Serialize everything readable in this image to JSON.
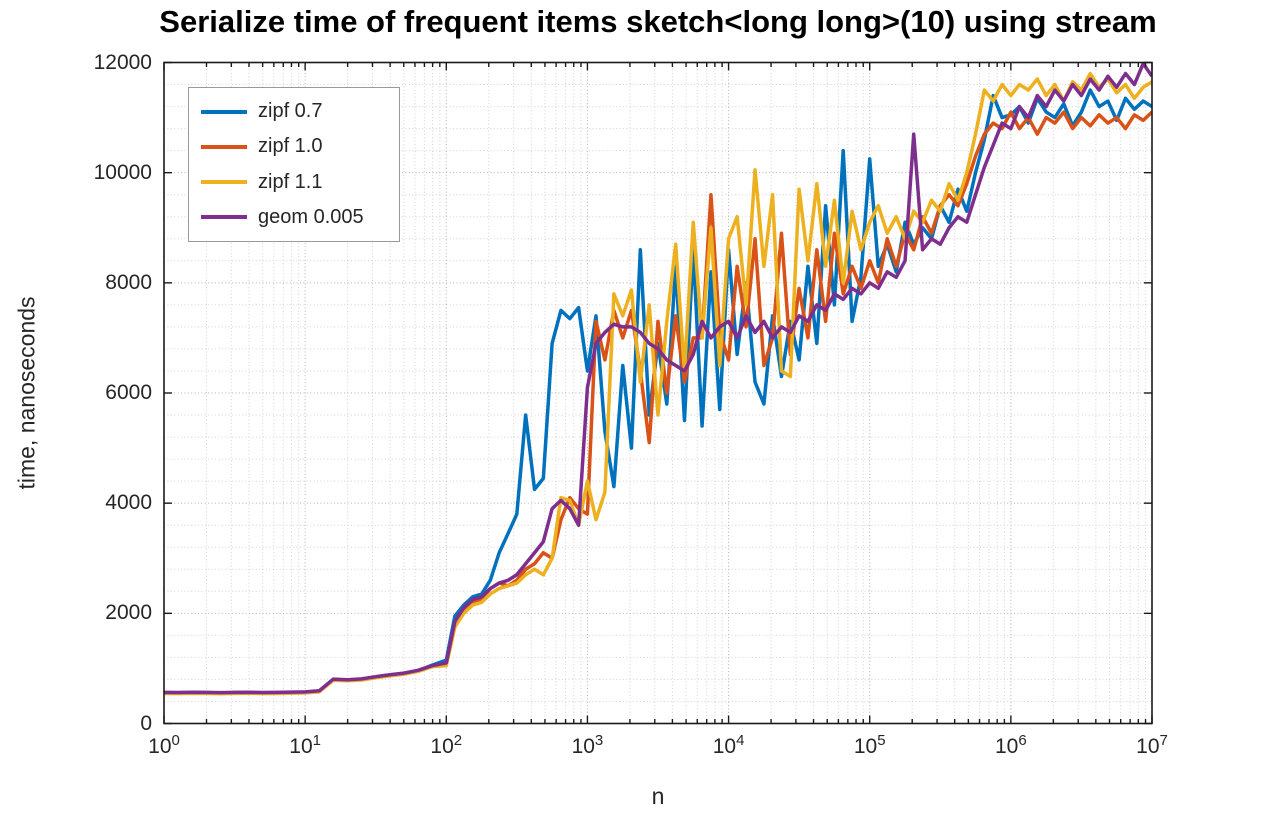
{
  "chart_data": {
    "type": "line",
    "title": "Serialize time of frequent items sketch<long long>(10) using stream",
    "xlabel": "n",
    "ylabel": "time, nanoseconds",
    "x_scale": "log10",
    "xlim": [
      1,
      10000000
    ],
    "ylim": [
      0,
      12000
    ],
    "x_tick_exponents": [
      0,
      1,
      2,
      3,
      4,
      5,
      6,
      7
    ],
    "y_ticks": [
      0,
      2000,
      4000,
      6000,
      8000,
      10000,
      12000
    ],
    "y_minor_step": 400,
    "grid": "major and minor dotted gridlines on",
    "legend_position": "top-left",
    "x": [
      1,
      1.26,
      1.58,
      2,
      2.51,
      3.16,
      3.98,
      5.01,
      6.31,
      7.94,
      10,
      12.6,
      15.8,
      20,
      25.1,
      31.6,
      39.8,
      50.1,
      63.1,
      79.4,
      100,
      115,
      133,
      154,
      178,
      205,
      237,
      274,
      316,
      365,
      422,
      487,
      562,
      649,
      750,
      866,
      1000,
      1150,
      1330,
      1540,
      1780,
      2050,
      2370,
      2740,
      3160,
      3650,
      4220,
      4870,
      5620,
      6490,
      7500,
      8660,
      10000,
      11500,
      13300,
      15400,
      17800,
      20500,
      23700,
      27400,
      31600,
      36500,
      42200,
      48700,
      56200,
      64900,
      75000,
      86600,
      100000,
      115000,
      133000,
      154000,
      178000,
      205000,
      237000,
      274000,
      316000,
      365000,
      422000,
      487000,
      562000,
      649000,
      750000,
      866000,
      1000000,
      1150000,
      1330000,
      1540000,
      1780000,
      2050000,
      2370000,
      2740000,
      3160000,
      3650000,
      4220000,
      4870000,
      5620000,
      6490000,
      7500000,
      8660000,
      10000000
    ],
    "series": [
      {
        "name": "zipf 0.7",
        "color": "#0072BD",
        "values": [
          560,
          558,
          562,
          560,
          556,
          560,
          563,
          558,
          560,
          565,
          570,
          590,
          800,
          790,
          805,
          845,
          880,
          910,
          960,
          1060,
          1150,
          1950,
          2150,
          2300,
          2350,
          2600,
          3100,
          3450,
          3800,
          5600,
          4250,
          4450,
          6900,
          7500,
          7350,
          7550,
          6400,
          7400,
          5300,
          4300,
          6500,
          5000,
          8600,
          5600,
          6900,
          5800,
          8300,
          5500,
          8600,
          5400,
          8200,
          5700,
          8600,
          6700,
          8000,
          6200,
          5800,
          7400,
          6300,
          7300,
          6600,
          8300,
          6900,
          9400,
          7600,
          10400,
          7300,
          8100,
          10250,
          8300,
          8700,
          8200,
          9100,
          8700,
          9000,
          8800,
          9400,
          9100,
          9700,
          9300,
          10000,
          10600,
          11400,
          11000,
          11050,
          11200,
          10900,
          11350,
          11100,
          11000,
          11250,
          10850,
          11100,
          11500,
          11200,
          11300,
          10950,
          11350,
          11150,
          11300,
          11200
        ]
      },
      {
        "name": "zipf 1.0",
        "color": "#D95319",
        "values": [
          552,
          550,
          554,
          552,
          548,
          552,
          555,
          550,
          552,
          557,
          562,
          582,
          792,
          782,
          797,
          837,
          872,
          900,
          950,
          1040,
          1100,
          1800,
          2050,
          2200,
          2250,
          2450,
          2550,
          2500,
          2600,
          2800,
          2900,
          3100,
          3000,
          3700,
          4100,
          3900,
          3800,
          7300,
          6600,
          7500,
          7000,
          7500,
          6400,
          5100,
          7300,
          6000,
          7400,
          6200,
          7000,
          7000,
          9600,
          7100,
          6600,
          8300,
          7200,
          8800,
          6500,
          7000,
          8900,
          6700,
          7900,
          7000,
          8600,
          7300,
          8900,
          7800,
          8300,
          7900,
          8400,
          8000,
          8800,
          8300,
          8900,
          8600,
          9200,
          8900,
          9400,
          9600,
          9400,
          9800,
          10300,
          10700,
          10900,
          10800,
          11100,
          10800,
          11000,
          10700,
          11000,
          10900,
          11100,
          10800,
          11000,
          10850,
          11050,
          10900,
          11000,
          10800,
          11050,
          10950,
          11100
        ]
      },
      {
        "name": "zipf 1.1",
        "color": "#EDB120",
        "values": [
          545,
          543,
          547,
          545,
          541,
          545,
          548,
          543,
          545,
          550,
          555,
          575,
          785,
          775,
          790,
          830,
          865,
          895,
          945,
          1030,
          1050,
          1750,
          2000,
          2150,
          2200,
          2350,
          2450,
          2500,
          2550,
          2700,
          2800,
          2700,
          3000,
          4100,
          4050,
          3600,
          4400,
          3700,
          4200,
          7800,
          7400,
          7870,
          6200,
          7600,
          5600,
          7300,
          8700,
          6400,
          9100,
          7000,
          9000,
          6500,
          8800,
          9200,
          7600,
          10050,
          8300,
          9600,
          6400,
          6300,
          9700,
          8400,
          9800,
          8300,
          9500,
          8000,
          9300,
          8600,
          9100,
          9400,
          8900,
          9200,
          8800,
          9300,
          9100,
          9500,
          9300,
          9800,
          9500,
          10000,
          10700,
          11500,
          11300,
          11600,
          11400,
          11600,
          11500,
          11700,
          11400,
          11600,
          11300,
          11650,
          11500,
          11800,
          11550,
          11700,
          11450,
          11600,
          11350,
          11550,
          11650
        ]
      },
      {
        "name": "geom 0.005",
        "color": "#7E2F8E",
        "values": [
          565,
          563,
          567,
          565,
          561,
          565,
          568,
          563,
          565,
          570,
          575,
          595,
          805,
          795,
          810,
          850,
          885,
          915,
          965,
          1050,
          1100,
          1850,
          2100,
          2250,
          2300,
          2450,
          2550,
          2600,
          2700,
          2900,
          3100,
          3300,
          3900,
          4050,
          3900,
          3600,
          6100,
          6900,
          7100,
          7250,
          7200,
          7200,
          7100,
          6900,
          6800,
          6600,
          6500,
          6400,
          6700,
          7300,
          7000,
          7200,
          7300,
          7000,
          7400,
          7100,
          7300,
          7000,
          7200,
          7100,
          7400,
          7300,
          7600,
          7500,
          7800,
          7700,
          7900,
          7800,
          8000,
          7900,
          8200,
          8100,
          8400,
          10700,
          8600,
          8800,
          8700,
          9000,
          9200,
          9100,
          9600,
          10100,
          10500,
          10900,
          10800,
          11200,
          11000,
          11400,
          11200,
          11500,
          11300,
          11600,
          11400,
          11700,
          11500,
          11750,
          11550,
          11800,
          11600,
          11980,
          11750
        ]
      }
    ]
  }
}
